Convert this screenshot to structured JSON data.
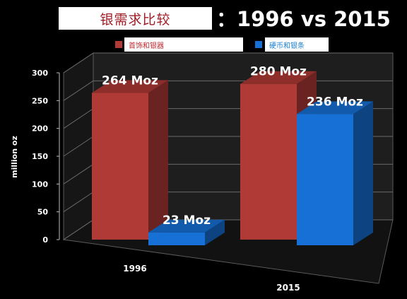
{
  "chart_data": {
    "type": "bar",
    "title_cn": "银需求比较",
    "title_suffix": "：1996 vs 2015",
    "categories": [
      "1996",
      "2015"
    ],
    "series": [
      {
        "name": "首饰和银器",
        "values": [
          264,
          280
        ],
        "labels": [
          "264 Moz",
          "280 Moz"
        ],
        "color": "#b03a36"
      },
      {
        "name": "硬币和银条",
        "values": [
          23,
          236
        ],
        "labels": [
          "23 Moz",
          "236 Moz"
        ],
        "color": "#1670d6"
      }
    ],
    "ylabel": "million oz",
    "ylim": [
      0,
      300
    ],
    "yticks": [
      0,
      50,
      100,
      150,
      200,
      250,
      300
    ],
    "grid": true,
    "legend_position": "top",
    "background": "#000000",
    "legend_text_colors": [
      "#c0282e",
      "#1a7fd0"
    ]
  }
}
